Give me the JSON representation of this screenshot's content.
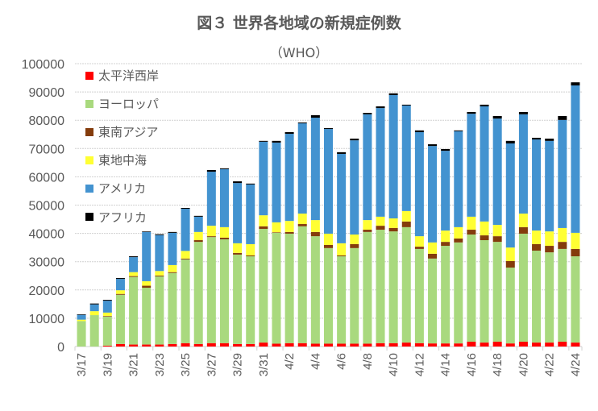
{
  "chart_data": {
    "type": "bar",
    "stacked": true,
    "title": "図３ 世界各地域の新規症例数",
    "subtitle": "（WHO）",
    "xlabel": "",
    "ylabel": "",
    "ylim": [
      0,
      100000
    ],
    "yticks": [
      0,
      10000,
      20000,
      30000,
      40000,
      50000,
      60000,
      70000,
      80000,
      90000,
      100000
    ],
    "grid": true,
    "legend_position": "top-left (inside)",
    "categories": [
      "3/17",
      "3/18",
      "3/19",
      "3/20",
      "3/21",
      "3/22",
      "3/23",
      "3/24",
      "3/25",
      "3/26",
      "3/27",
      "3/28",
      "3/29",
      "3/30",
      "3/31",
      "4/1",
      "4/2",
      "4/3",
      "4/4",
      "4/5",
      "4/6",
      "4/7",
      "4/8",
      "4/9",
      "4/10",
      "4/11",
      "4/12",
      "4/13",
      "4/14",
      "4/15",
      "4/16",
      "4/17",
      "4/18",
      "4/19",
      "4/20",
      "4/21",
      "4/22",
      "4/23",
      "4/24"
    ],
    "tick_labels": [
      "3/17",
      "3/19",
      "3/21",
      "3/23",
      "3/25",
      "3/27",
      "3/29",
      "3/31",
      "4/2",
      "4/4",
      "4/6",
      "4/8",
      "4/10",
      "4/12",
      "4/14",
      "4/16",
      "4/18",
      "4/20",
      "4/22",
      "4/24"
    ],
    "series": [
      {
        "name": "太平洋西岸",
        "color": "#FF0000",
        "values": [
          0,
          0,
          300,
          900,
          700,
          700,
          700,
          900,
          1200,
          900,
          1200,
          1200,
          900,
          900,
          1400,
          1000,
          1200,
          1200,
          1000,
          1000,
          1000,
          1000,
          1000,
          1200,
          1200,
          1400,
          1200,
          1100,
          1100,
          1100,
          1700,
          1400,
          1700,
          1100,
          1700,
          1400,
          1400,
          1700,
          1400
        ]
      },
      {
        "name": "ヨーロッパ",
        "color": "#A9D97E",
        "values": [
          9000,
          11100,
          10300,
          17400,
          23900,
          20100,
          24100,
          25100,
          29600,
          36100,
          37500,
          36700,
          31600,
          31000,
          40200,
          39200,
          38700,
          41300,
          38000,
          33800,
          30900,
          33800,
          39500,
          40100,
          39500,
          40800,
          33300,
          30000,
          34500,
          35700,
          37900,
          36200,
          35300,
          26800,
          38200,
          32500,
          31900,
          32800,
          30500
        ]
      },
      {
        "name": "東南アジア",
        "color": "#843C0C",
        "values": [
          0,
          0,
          200,
          300,
          300,
          700,
          300,
          300,
          300,
          600,
          300,
          600,
          600,
          300,
          900,
          200,
          600,
          800,
          1500,
          1100,
          300,
          1400,
          800,
          1400,
          1200,
          2000,
          800,
          1700,
          1400,
          1400,
          1700,
          1700,
          2000,
          2300,
          2300,
          2300,
          2300,
          2500,
          2600
        ]
      },
      {
        "name": "東地中海",
        "color": "#FFFF33",
        "values": [
          500,
          1400,
          1200,
          1300,
          1400,
          1600,
          1600,
          2500,
          2700,
          2900,
          3700,
          3700,
          3400,
          4000,
          3900,
          3500,
          3900,
          3700,
          4200,
          4000,
          4300,
          3400,
          3400,
          3200,
          3400,
          3700,
          3700,
          4000,
          4000,
          4000,
          4600,
          4900,
          4000,
          4800,
          4800,
          4800,
          5100,
          4900,
          5700
        ]
      },
      {
        "name": "アメリカ",
        "color": "#4393D0",
        "values": [
          1700,
          2400,
          4200,
          4000,
          5300,
          17400,
          12700,
          11400,
          14900,
          5400,
          19100,
          20500,
          21300,
          21100,
          26000,
          28200,
          30800,
          31900,
          36200,
          37000,
          31600,
          33300,
          37400,
          38400,
          43600,
          37300,
          36800,
          34100,
          28200,
          33900,
          36400,
          40700,
          37600,
          36800,
          35100,
          32200,
          32000,
          38200,
          52100
        ]
      },
      {
        "name": "アフリカ",
        "color": "#000000",
        "values": [
          200,
          300,
          300,
          300,
          300,
          200,
          300,
          300,
          300,
          300,
          600,
          300,
          600,
          300,
          300,
          600,
          600,
          300,
          900,
          300,
          600,
          600,
          500,
          600,
          600,
          300,
          600,
          600,
          600,
          300,
          600,
          600,
          900,
          900,
          800,
          600,
          800,
          1400,
          1100
        ]
      }
    ]
  }
}
